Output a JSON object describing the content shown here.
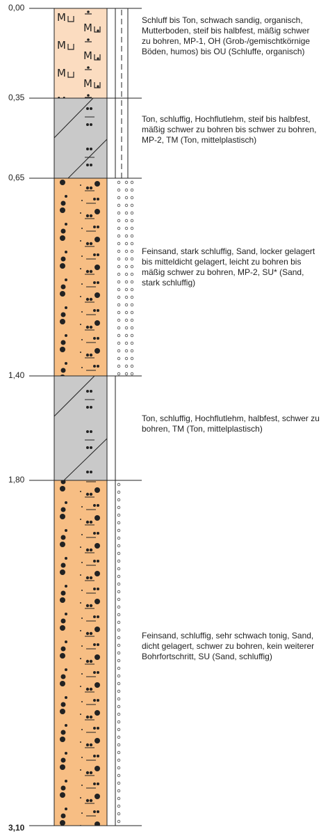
{
  "colors": {
    "topsoil": "#fbdcc0",
    "clay": "#c9c9c9",
    "sand": "#f7be84",
    "outline": "#222222"
  },
  "layers": [
    {
      "top": "0,00",
      "bottom": "0,35",
      "soil": "topsoil",
      "icon_name": "humus-silt-pattern",
      "description": "Schluff bis Ton, schwach sandig, organisch, Mutterboden, steif bis halbfest, mäßig schwer zu bohren, MP-1, OH (Grob-/gemischtkörnige Böden, humos) bis OU (Schluffe, organisch)"
    },
    {
      "top": "0,35",
      "bottom": "0,65",
      "soil": "clay",
      "icon_name": "clay-hatch-pattern",
      "description": "Ton, schluffig, Hochflutlehm, steif bis halbfest, mäßig schwer zu bohren bis schwer zu bohren, MP-2, TM (Ton, mittelplastisch)"
    },
    {
      "top": "0,65",
      "bottom": "1,40",
      "soil": "sand",
      "icon_name": "sand-dot-pattern",
      "description": "Feinsand, stark schluffig, Sand, locker gelagert bis mitteldicht gelagert, leicht zu bohren bis mäßig schwer zu bohren, MP-2, SU* (Sand, stark schluffig)"
    },
    {
      "top": "1,40",
      "bottom": "1,80",
      "soil": "clay",
      "icon_name": "clay-hatch-pattern",
      "description": "Ton, schluffig, Hochflutlehm, halbfest, schwer zu bohren, TM (Ton, mittelplastisch)"
    },
    {
      "top": "1,80",
      "bottom": "3,10",
      "soil": "sand",
      "icon_name": "sand-dot-pattern",
      "description": "Feinsand, schluffig, sehr schwach tonig, Sand, dicht gelagert, schwer zu bohren, kein weiterer Bohrfortschritt, SU (Sand, schluffig)"
    }
  ],
  "final_depth": "3,10"
}
